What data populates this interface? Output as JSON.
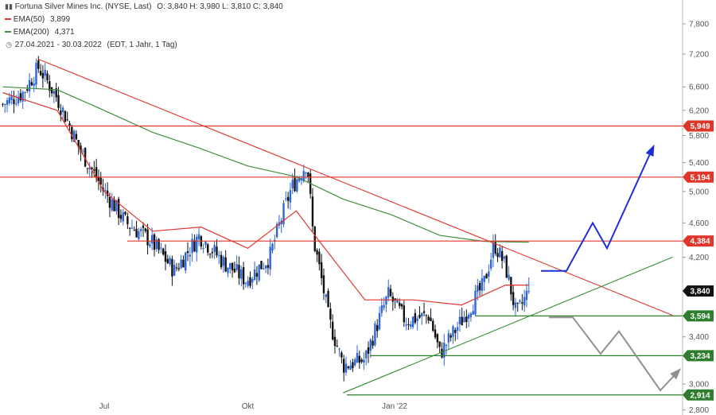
{
  "header": {
    "title": "Fortuna Silver Mines Inc. (NYSE, Last)",
    "ohlc": "O: 3,840  H: 3,980  L: 3,810  C: 3,840",
    "ema50_label": "EMA(50)",
    "ema50_value": "3,899",
    "ema200_label": "EMA(200)",
    "ema200_value": "4,371",
    "range": "27.04.2021 - 30.03.2022",
    "settings": "(EDT, 1 Jahr, 1 Tag)"
  },
  "colors": {
    "up": "#2e66d6",
    "down": "#111111",
    "ema50": "#e0362a",
    "ema200": "#3f8f3f",
    "resistance": "#e0362a",
    "support": "#2f7d2f",
    "trendline_down": "#e0362a",
    "trendline_up": "#2f8f2f",
    "projection_up": "#1d2fd8",
    "projection_down": "#909090",
    "last_price_tag": "#111111"
  },
  "chart_data": {
    "type": "candlestick",
    "title": "Fortuna Silver Mines Inc. (NYSE, Last)",
    "x_tick_labels": [
      "Jul",
      "Okt",
      "Jan '22"
    ],
    "y_tick_labels": [
      "2,800",
      "3,000",
      "3,400",
      "4,200",
      "4,600",
      "5,000",
      "5,400",
      "5,800",
      "6,200",
      "6,600",
      "7,200",
      "7,800"
    ],
    "y_scale": "log",
    "ylim": [
      2.8,
      8.2
    ],
    "grid": false,
    "last_price": 3.84,
    "last_ohlc": {
      "open": 3.84,
      "high": 3.98,
      "low": 3.81,
      "close": 3.84
    },
    "price_series_approx": {
      "x": [
        "2021-04-27",
        "2021-05-10",
        "2021-05-20",
        "2021-06-01",
        "2021-06-15",
        "2021-07-01",
        "2021-07-15",
        "2021-07-30",
        "2021-08-15",
        "2021-08-31",
        "2021-09-15",
        "2021-09-30",
        "2021-10-15",
        "2021-10-29",
        "2021-11-08",
        "2021-11-12",
        "2021-11-22",
        "2021-12-01",
        "2021-12-15",
        "2021-12-30",
        "2022-01-10",
        "2022-01-25",
        "2022-02-01",
        "2022-02-15",
        "2022-03-01",
        "2022-03-08",
        "2022-03-15",
        "2022-03-22",
        "2022-03-30"
      ],
      "close": [
        6.3,
        6.5,
        6.95,
        6.4,
        5.6,
        5.0,
        4.6,
        4.4,
        4.05,
        4.45,
        4.15,
        3.95,
        4.2,
        5.05,
        5.4,
        4.4,
        3.55,
        3.15,
        3.2,
        3.8,
        3.55,
        3.6,
        3.25,
        3.55,
        3.9,
        4.35,
        4.1,
        3.6,
        3.84
      ]
    },
    "ema50_approx": {
      "x": [
        "2021-04-27",
        "2021-06-01",
        "2021-07-01",
        "2021-08-01",
        "2021-09-01",
        "2021-10-01",
        "2021-11-01",
        "2021-11-15",
        "2021-12-15",
        "2022-01-15",
        "2022-02-15",
        "2022-03-15",
        "2022-03-30"
      ],
      "y": [
        6.5,
        6.2,
        5.0,
        4.5,
        4.55,
        4.3,
        4.75,
        4.4,
        3.75,
        3.75,
        3.7,
        3.9,
        3.9
      ]
    },
    "ema200_approx": {
      "x": [
        "2021-04-27",
        "2021-06-01",
        "2021-07-01",
        "2021-08-01",
        "2021-09-01",
        "2021-10-01",
        "2021-11-01",
        "2021-12-01",
        "2022-01-01",
        "2022-02-01",
        "2022-03-01",
        "2022-03-30"
      ],
      "y": [
        6.6,
        6.55,
        6.2,
        5.85,
        5.6,
        5.35,
        5.2,
        4.9,
        4.7,
        4.45,
        4.38,
        4.37
      ]
    },
    "horizontal_levels": [
      {
        "value": 5.949,
        "label": "5,949",
        "kind": "resistance"
      },
      {
        "value": 5.194,
        "label": "5,194",
        "kind": "resistance"
      },
      {
        "value": 4.384,
        "label": "4,384",
        "kind": "resistance"
      },
      {
        "value": 3.594,
        "label": "3,594",
        "kind": "support"
      },
      {
        "value": 3.234,
        "label": "3,234",
        "kind": "support"
      },
      {
        "value": 2.914,
        "label": "2,914",
        "kind": "support"
      }
    ],
    "trendlines": [
      {
        "kind": "down",
        "from": {
          "x": "2021-05-20",
          "y": 7.1
        },
        "to": {
          "x": "2022-06-30",
          "y": 3.6
        }
      },
      {
        "kind": "up",
        "from": {
          "x": "2021-12-01",
          "y": 2.93
        },
        "to": {
          "x": "2022-06-30",
          "y": 4.2
        }
      }
    ],
    "projections": [
      {
        "kind": "bullish",
        "y": [
          4.05,
          4.05,
          4.6,
          4.3,
          5.6
        ]
      },
      {
        "kind": "bearish",
        "y": [
          3.58,
          3.58,
          3.25,
          3.45,
          2.95,
          3.1
        ]
      }
    ]
  }
}
